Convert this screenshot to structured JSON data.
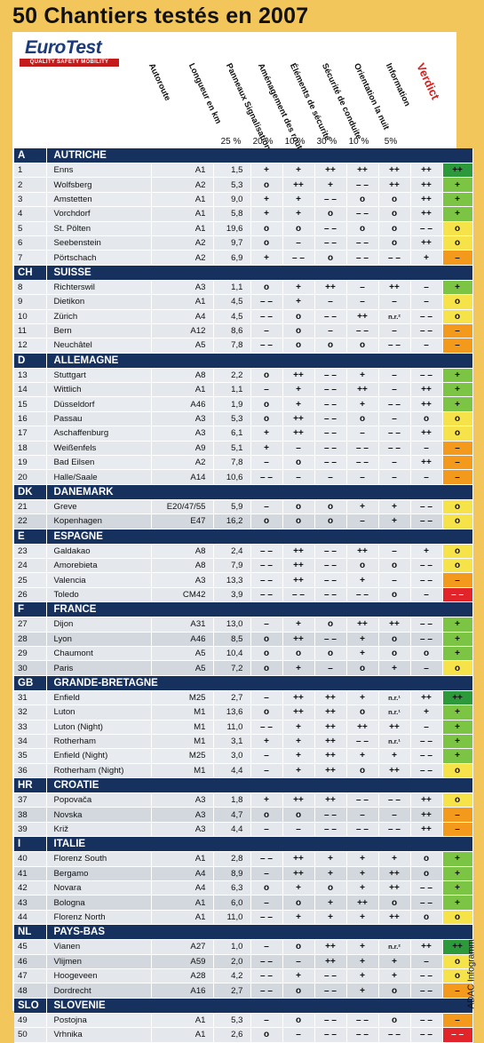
{
  "title": "50 Chantiers testés en 2007",
  "logo": {
    "name": "EuroTest",
    "tagline": "QUALITY SAFETY MOBILITY"
  },
  "columns": [
    "Autoroute",
    "Longueur en km",
    "Panneaux Signalisation routière",
    "Aménagement des routes",
    "Éléments de sécurité",
    "Sécurité de conduite",
    "Orientation la nuit",
    "Information",
    "Verdict"
  ],
  "weights": [
    "25 %",
    "20 %",
    "10 %",
    "30 %",
    "10 %",
    "5%"
  ],
  "footer": "ADAC Infogramm",
  "colors": {
    "verdict_pp": "#2c9a3a",
    "verdict_p": "#7cc443",
    "verdict_o": "#f6e34a",
    "verdict_m": "#f39a1d",
    "verdict_mm": "#e0242a",
    "country_bar": "#17315f"
  },
  "countries": [
    {
      "code": "A",
      "name": "AUTRICHE",
      "rows": [
        [
          "1",
          "Enns",
          "A1",
          "1,5",
          "+",
          "+",
          "++",
          "++",
          "++",
          "++",
          "++"
        ],
        [
          "2",
          "Wolfsberg",
          "A2",
          "5,3",
          "o",
          "++",
          "+",
          "– –",
          "++",
          "++",
          "+"
        ],
        [
          "3",
          "Amstetten",
          "A1",
          "9,0",
          "+",
          "+",
          "– –",
          "o",
          "o",
          "++",
          "+"
        ],
        [
          "4",
          "Vorchdorf",
          "A1",
          "5,8",
          "+",
          "+",
          "o",
          "– –",
          "o",
          "++",
          "+"
        ],
        [
          "5",
          "St. Pölten",
          "A1",
          "19,6",
          "o",
          "o",
          "– –",
          "o",
          "o",
          "– –",
          "o"
        ],
        [
          "6",
          "Seebenstein",
          "A2",
          "9,7",
          "o",
          "–",
          "– –",
          "– –",
          "o",
          "++",
          "o"
        ],
        [
          "7",
          "Pörtschach",
          "A2",
          "6,9",
          "+",
          "– –",
          "o",
          "– –",
          "– –",
          "+",
          "–"
        ]
      ]
    },
    {
      "code": "CH",
      "name": "SUISSE",
      "rows": [
        [
          "8",
          "Richterswil",
          "A3",
          "1,1",
          "o",
          "+",
          "++",
          "–",
          "++",
          "–",
          "+"
        ],
        [
          "9",
          "Dietikon",
          "A1",
          "4,5",
          "– –",
          "+",
          "–",
          "–",
          "–",
          "–",
          "o"
        ],
        [
          "10",
          "Zürich",
          "A4",
          "4,5",
          "– –",
          "o",
          "– –",
          "++",
          "n.r.²",
          "– –",
          "o"
        ],
        [
          "11",
          "Bern",
          "A12",
          "8,6",
          "–",
          "o",
          "–",
          "– –",
          "–",
          "– –",
          "–"
        ],
        [
          "12",
          "Neuchâtel",
          "A5",
          "7,8",
          "– –",
          "o",
          "o",
          "o",
          "– –",
          "–",
          "–"
        ]
      ]
    },
    {
      "code": "D",
      "name": "ALLEMAGNE",
      "rows": [
        [
          "13",
          "Stuttgart",
          "A8",
          "2,2",
          "o",
          "++",
          "– –",
          "+",
          "–",
          "– –",
          "+"
        ],
        [
          "14",
          "Wittlich",
          "A1",
          "1,1",
          "–",
          "+",
          "– –",
          "++",
          "–",
          "++",
          "+"
        ],
        [
          "15",
          "Düsseldorf",
          "A46",
          "1,9",
          "o",
          "+",
          "– –",
          "+",
          "– –",
          "++",
          "+"
        ],
        [
          "16",
          "Passau",
          "A3",
          "5,3",
          "o",
          "++",
          "– –",
          "o",
          "–",
          "o",
          "o"
        ],
        [
          "17",
          "Aschaffenburg",
          "A3",
          "6,1",
          "+",
          "++",
          "– –",
          "–",
          "– –",
          "++",
          "o"
        ],
        [
          "18",
          "Weißenfels",
          "A9",
          "5,1",
          "+",
          "–",
          "– –",
          "– –",
          "– –",
          "–",
          "–"
        ],
        [
          "19",
          "Bad Eilsen",
          "A2",
          "7,8",
          "–",
          "o",
          "– –",
          "– –",
          "–",
          "++",
          "–"
        ],
        [
          "20",
          "Halle/Saale",
          "A14",
          "10,6",
          "– –",
          "–",
          "–",
          "–",
          "–",
          "–",
          "–"
        ]
      ]
    },
    {
      "code": "DK",
      "name": "DANEMARK",
      "rows": [
        [
          "21",
          "Greve",
          "E20/47/55",
          "5,9",
          "–",
          "o",
          "o",
          "+",
          "+",
          "– –",
          "o"
        ],
        [
          "22",
          "Kopenhagen",
          "E47",
          "16,2",
          "o",
          "o",
          "o",
          "–",
          "+",
          "– –",
          "o"
        ]
      ]
    },
    {
      "code": "E",
      "name": "ESPAGNE",
      "rows": [
        [
          "23",
          "Galdakao",
          "A8",
          "2,4",
          "– –",
          "++",
          "– –",
          "++",
          "–",
          "+",
          "o"
        ],
        [
          "24",
          "Amorebieta",
          "A8",
          "7,9",
          "– –",
          "++",
          "– –",
          "o",
          "o",
          "– –",
          "o"
        ],
        [
          "25",
          "Valencia",
          "A3",
          "13,3",
          "– –",
          "++",
          "– –",
          "+",
          "–",
          "– –",
          "–"
        ],
        [
          "26",
          "Toledo",
          "CM42",
          "3,9",
          "– –",
          "– –",
          "– –",
          "– –",
          "o",
          "–",
          "– –"
        ]
      ]
    },
    {
      "code": "F",
      "name": "FRANCE",
      "rows": [
        [
          "27",
          "Dijon",
          "A31",
          "13,0",
          "–",
          "+",
          "o",
          "++",
          "++",
          "– –",
          "+"
        ],
        [
          "28",
          "Lyon",
          "A46",
          "8,5",
          "o",
          "++",
          "– –",
          "+",
          "o",
          "– –",
          "+"
        ],
        [
          "29",
          "Chaumont",
          "A5",
          "10,4",
          "o",
          "o",
          "o",
          "+",
          "o",
          "o",
          "+"
        ],
        [
          "30",
          "Paris",
          "A5",
          "7,2",
          "o",
          "+",
          "–",
          "o",
          "+",
          "–",
          "o"
        ]
      ]
    },
    {
      "code": "GB",
      "name": "GRANDE-BRETAGNE",
      "rows": [
        [
          "31",
          "Enfield",
          "M25",
          "2,7",
          "–",
          "++",
          "++",
          "+",
          "n.r.¹",
          "++",
          "++"
        ],
        [
          "32",
          "Luton",
          "M1",
          "13,6",
          "o",
          "++",
          "++",
          "o",
          "n.r.¹",
          "+",
          "+"
        ],
        [
          "33",
          "Luton (Night)",
          "M1",
          "11,0",
          "– –",
          "+",
          "++",
          "++",
          "++",
          "–",
          "+"
        ],
        [
          "34",
          "Rotherham",
          "M1",
          "3,1",
          "+",
          "+",
          "++",
          "– –",
          "n.r.¹",
          "– –",
          "+"
        ],
        [
          "35",
          "Enfield (Night)",
          "M25",
          "3,0",
          "–",
          "+",
          "++",
          "+",
          "+",
          "– –",
          "+"
        ],
        [
          "36",
          "Rotherham (Night)",
          "M1",
          "4,4",
          "–",
          "+",
          "++",
          "o",
          "++",
          "– –",
          "o"
        ]
      ]
    },
    {
      "code": "HR",
      "name": "CROATIE",
      "rows": [
        [
          "37",
          "Popovača",
          "A3",
          "1,8",
          "+",
          "++",
          "++",
          "– –",
          "– –",
          "++",
          "o"
        ],
        [
          "38",
          "Novska",
          "A3",
          "4,7",
          "o",
          "o",
          "– –",
          "–",
          "–",
          "++",
          "–"
        ],
        [
          "39",
          "Križ",
          "A3",
          "4,4",
          "–",
          "–",
          "– –",
          "– –",
          "– –",
          "++",
          "–"
        ]
      ]
    },
    {
      "code": "I",
      "name": "ITALIE",
      "rows": [
        [
          "40",
          "Florenz South",
          "A1",
          "2,8",
          "– –",
          "++",
          "+",
          "+",
          "+",
          "o",
          "+"
        ],
        [
          "41",
          "Bergamo",
          "A4",
          "8,9",
          "–",
          "++",
          "+",
          "+",
          "++",
          "o",
          "+"
        ],
        [
          "42",
          "Novara",
          "A4",
          "6,3",
          "o",
          "+",
          "o",
          "+",
          "++",
          "– –",
          "+"
        ],
        [
          "43",
          "Bologna",
          "A1",
          "6,0",
          "–",
          "o",
          "+",
          "++",
          "o",
          "– –",
          "+"
        ],
        [
          "44",
          "Florenz North",
          "A1",
          "11,0",
          "– –",
          "+",
          "+",
          "+",
          "++",
          "o",
          "o"
        ]
      ]
    },
    {
      "code": "NL",
      "name": "PAYS-BAS",
      "rows": [
        [
          "45",
          "Vianen",
          "A27",
          "1,0",
          "–",
          "o",
          "++",
          "+",
          "n.r.²",
          "++",
          "++"
        ],
        [
          "46",
          "Vlijmen",
          "A59",
          "2,0",
          "– –",
          "–",
          "++",
          "+",
          "+",
          "–",
          "o"
        ],
        [
          "47",
          "Hoogeveen",
          "A28",
          "4,2",
          "– –",
          "+",
          "– –",
          "+",
          "+",
          "– –",
          "o"
        ],
        [
          "48",
          "Dordrecht",
          "A16",
          "2,7",
          "– –",
          "o",
          "– –",
          "+",
          "o",
          "– –",
          "–"
        ]
      ]
    },
    {
      "code": "SLO",
      "name": "SLOVENIE",
      "rows": [
        [
          "49",
          "Postojna",
          "A1",
          "5,3",
          "–",
          "o",
          "– –",
          "– –",
          "o",
          "– –",
          "–"
        ],
        [
          "50",
          "Vrhnika",
          "A1",
          "2,6",
          "o",
          "–",
          "– –",
          "– –",
          "– –",
          "– –",
          "– –"
        ]
      ]
    }
  ]
}
